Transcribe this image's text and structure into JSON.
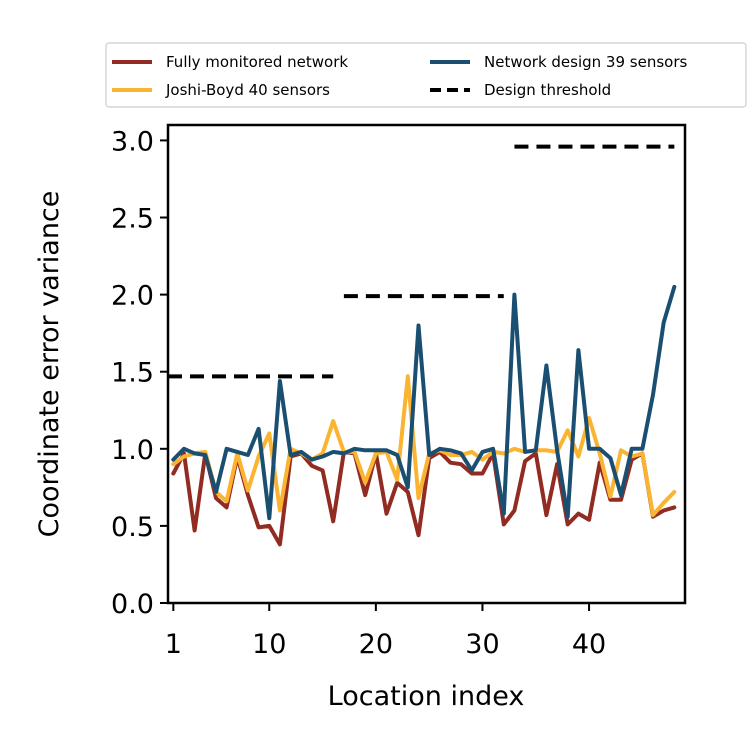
{
  "chart_data": {
    "type": "line",
    "xlabel": "Location index",
    "ylabel": "Coordinate error variance",
    "xlim": [
      0.5,
      49
    ],
    "ylim": [
      0,
      3.1
    ],
    "x_ticks": [
      1,
      10,
      20,
      30,
      40
    ],
    "y_ticks": [
      0.0,
      0.5,
      1.0,
      1.5,
      2.0,
      2.5,
      3.0
    ],
    "y_tick_labels": [
      "0.0",
      "0.5",
      "1.0",
      "1.5",
      "2.0",
      "2.5",
      "3.0"
    ],
    "grid": false,
    "legend_position": "top",
    "series": [
      {
        "name": "Fully monitored network",
        "color": "#922B21",
        "style": "solid",
        "x": [
          1,
          2,
          3,
          4,
          5,
          6,
          7,
          8,
          9,
          10,
          11,
          12,
          13,
          14,
          15,
          16,
          17,
          18,
          19,
          20,
          21,
          22,
          23,
          24,
          25,
          26,
          27,
          28,
          29,
          30,
          31,
          32,
          33,
          34,
          35,
          36,
          37,
          38,
          39,
          40,
          41,
          42,
          43,
          44,
          45,
          46,
          47,
          48
        ],
        "values": [
          0.84,
          0.97,
          0.47,
          0.97,
          0.68,
          0.62,
          0.95,
          0.7,
          0.49,
          0.5,
          0.38,
          0.95,
          0.97,
          0.89,
          0.86,
          0.53,
          0.98,
          0.97,
          0.7,
          0.97,
          0.58,
          0.78,
          0.72,
          0.44,
          0.94,
          0.98,
          0.91,
          0.9,
          0.84,
          0.84,
          0.97,
          0.51,
          0.6,
          0.92,
          0.97,
          0.57,
          0.9,
          0.51,
          0.58,
          0.54,
          0.91,
          0.67,
          0.67,
          0.93,
          0.97,
          0.56,
          0.6,
          0.62
        ]
      },
      {
        "name": "Joshi-Boyd 40 sensors",
        "color": "#FBB431",
        "style": "solid",
        "x": [
          1,
          2,
          3,
          4,
          5,
          6,
          7,
          8,
          9,
          10,
          11,
          12,
          13,
          14,
          15,
          16,
          17,
          18,
          19,
          20,
          21,
          22,
          23,
          24,
          25,
          26,
          27,
          28,
          29,
          30,
          31,
          32,
          33,
          34,
          35,
          36,
          37,
          38,
          39,
          40,
          41,
          42,
          43,
          44,
          45,
          46,
          47,
          48
        ],
        "values": [
          0.9,
          0.95,
          0.97,
          0.98,
          0.72,
          0.66,
          0.97,
          0.73,
          0.95,
          1.1,
          0.6,
          1.0,
          0.97,
          0.93,
          0.97,
          1.18,
          0.98,
          0.98,
          0.78,
          0.97,
          0.98,
          0.8,
          1.47,
          0.68,
          0.97,
          0.99,
          0.96,
          0.96,
          0.98,
          0.93,
          0.98,
          0.97,
          1.0,
          0.98,
          0.99,
          0.99,
          0.98,
          1.12,
          0.95,
          1.2,
          0.97,
          0.69,
          0.99,
          0.95,
          0.97,
          0.57,
          0.65,
          0.72
        ]
      },
      {
        "name": "Network design 39 sensors",
        "color": "#1B4F72",
        "style": "solid",
        "x": [
          1,
          2,
          3,
          4,
          5,
          6,
          7,
          8,
          9,
          10,
          11,
          12,
          13,
          14,
          15,
          16,
          17,
          18,
          19,
          20,
          21,
          22,
          23,
          24,
          25,
          26,
          27,
          28,
          29,
          30,
          31,
          32,
          33,
          34,
          35,
          36,
          37,
          38,
          39,
          40,
          41,
          42,
          43,
          44,
          45,
          46,
          47,
          48
        ],
        "values": [
          0.93,
          1.0,
          0.97,
          0.96,
          0.72,
          1.0,
          0.98,
          0.96,
          1.13,
          0.55,
          1.44,
          0.96,
          0.98,
          0.93,
          0.95,
          0.98,
          0.97,
          1.0,
          0.99,
          0.99,
          0.99,
          0.96,
          0.75,
          1.8,
          0.96,
          1.0,
          0.99,
          0.97,
          0.86,
          0.98,
          1.0,
          0.58,
          2.0,
          0.98,
          0.99,
          1.54,
          0.99,
          0.56,
          1.64,
          1.0,
          1.0,
          0.94,
          0.7,
          1.0,
          1.0,
          1.35,
          1.82,
          2.05
        ]
      },
      {
        "name": "Design threshold",
        "color": "#000000",
        "style": "dashed",
        "segments": [
          {
            "x": [
              0.5,
              16
            ],
            "y": 1.47
          },
          {
            "x": [
              17,
              32
            ],
            "y": 1.99
          },
          {
            "x": [
              33,
              48
            ],
            "y": 2.96
          }
        ]
      }
    ]
  }
}
